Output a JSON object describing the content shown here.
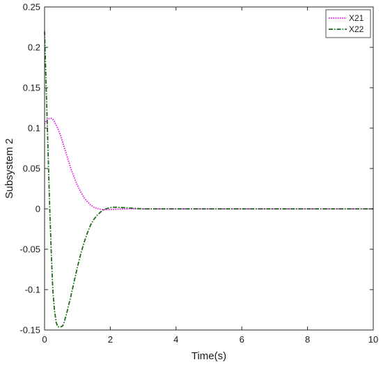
{
  "chart_data": {
    "type": "line",
    "xlabel": "Time(s)",
    "ylabel": "Subsystem 2",
    "xlim": [
      0,
      10
    ],
    "ylim": [
      -0.15,
      0.25
    ],
    "xticks": [
      0,
      2,
      4,
      6,
      8,
      10
    ],
    "yticks": [
      -0.15,
      -0.1,
      -0.05,
      0,
      0.05,
      0.1,
      0.15,
      0.2,
      0.25
    ],
    "xtick_labels": [
      "0",
      "2",
      "4",
      "6",
      "8",
      "10"
    ],
    "ytick_labels": [
      "-0.15",
      "-0.1",
      "-0.05",
      "0",
      "0.05",
      "0.1",
      "0.15",
      "0.2",
      "0.25"
    ],
    "grid": false,
    "legend_position": "top-right",
    "series": [
      {
        "name": "X21",
        "color": "#e815e8",
        "style": "dotted",
        "x": [
          0,
          0.05,
          0.1,
          0.15,
          0.2,
          0.25,
          0.3,
          0.4,
          0.5,
          0.6,
          0.7,
          0.8,
          0.9,
          1.0,
          1.1,
          1.2,
          1.3,
          1.4,
          1.5,
          1.6,
          1.7,
          1.8,
          1.9,
          2.0,
          2.2,
          2.4,
          2.6,
          2.8,
          3.0,
          4.0,
          6.0,
          8.0,
          10.0
        ],
        "y": [
          0.105,
          0.109,
          0.111,
          0.112,
          0.112,
          0.111,
          0.108,
          0.1,
          0.089,
          0.076,
          0.063,
          0.05,
          0.039,
          0.029,
          0.021,
          0.014,
          0.009,
          0.005,
          0.002,
          0.0005,
          -0.0005,
          -0.001,
          -0.001,
          -0.0008,
          -0.0004,
          -0.0001,
          0,
          0,
          0,
          0,
          0,
          0,
          0
        ]
      },
      {
        "name": "X22",
        "color": "#1a6e1a",
        "style": "dashdot",
        "x": [
          0,
          0.05,
          0.1,
          0.15,
          0.2,
          0.25,
          0.3,
          0.35,
          0.4,
          0.45,
          0.5,
          0.55,
          0.6,
          0.7,
          0.8,
          0.9,
          1.0,
          1.1,
          1.2,
          1.3,
          1.4,
          1.5,
          1.6,
          1.7,
          1.8,
          1.9,
          2.0,
          2.1,
          2.2,
          2.4,
          2.6,
          2.8,
          3.0,
          4.0,
          6.0,
          8.0,
          10.0
        ],
        "y": [
          0.22,
          0.15,
          0.08,
          0.01,
          -0.05,
          -0.1,
          -0.125,
          -0.14,
          -0.146,
          -0.146,
          -0.146,
          -0.145,
          -0.14,
          -0.125,
          -0.108,
          -0.09,
          -0.072,
          -0.056,
          -0.042,
          -0.03,
          -0.02,
          -0.013,
          -0.008,
          -0.004,
          -0.001,
          0.0005,
          0.0015,
          0.002,
          0.002,
          0.0015,
          0.001,
          0.0005,
          0,
          0,
          0,
          0,
          0
        ]
      }
    ]
  }
}
